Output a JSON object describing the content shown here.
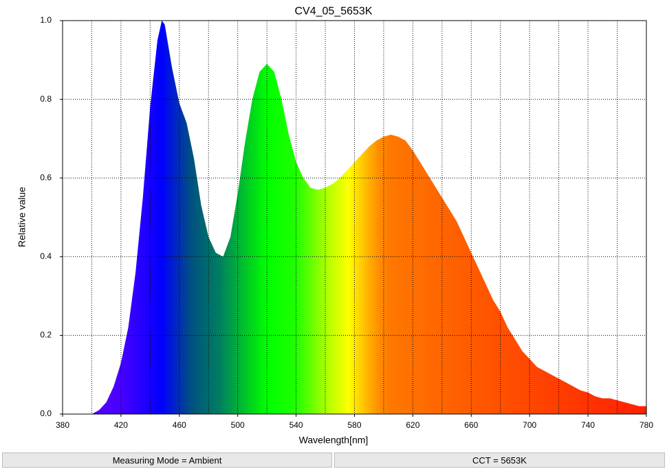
{
  "chart_data": {
    "type": "area",
    "title": "CV4_05_5653K",
    "x_label": "Wavelength[nm]",
    "y_label": "Relative value",
    "x": [
      400,
      405,
      410,
      415,
      420,
      425,
      430,
      435,
      440,
      445,
      448,
      450,
      455,
      460,
      465,
      470,
      475,
      480,
      485,
      490,
      495,
      500,
      505,
      510,
      515,
      520,
      525,
      530,
      535,
      540,
      545,
      550,
      555,
      560,
      565,
      570,
      575,
      580,
      585,
      590,
      595,
      600,
      605,
      610,
      615,
      620,
      625,
      630,
      635,
      640,
      645,
      650,
      655,
      660,
      665,
      670,
      675,
      680,
      685,
      690,
      695,
      700,
      705,
      710,
      715,
      720,
      725,
      730,
      735,
      740,
      745,
      750,
      755,
      760,
      765,
      770,
      775,
      780
    ],
    "values": [
      0.0,
      0.01,
      0.03,
      0.07,
      0.13,
      0.22,
      0.36,
      0.55,
      0.78,
      0.95,
      1.0,
      0.99,
      0.88,
      0.79,
      0.74,
      0.65,
      0.53,
      0.45,
      0.41,
      0.4,
      0.45,
      0.56,
      0.69,
      0.8,
      0.87,
      0.89,
      0.87,
      0.8,
      0.71,
      0.64,
      0.6,
      0.575,
      0.57,
      0.575,
      0.585,
      0.6,
      0.62,
      0.64,
      0.66,
      0.68,
      0.695,
      0.705,
      0.71,
      0.705,
      0.695,
      0.67,
      0.64,
      0.61,
      0.58,
      0.55,
      0.52,
      0.49,
      0.45,
      0.41,
      0.37,
      0.33,
      0.29,
      0.26,
      0.22,
      0.19,
      0.16,
      0.14,
      0.12,
      0.11,
      0.1,
      0.09,
      0.08,
      0.07,
      0.06,
      0.055,
      0.045,
      0.04,
      0.04,
      0.035,
      0.03,
      0.025,
      0.02,
      0.02
    ],
    "xlim": [
      380,
      780
    ],
    "xticks": [
      380,
      420,
      460,
      500,
      540,
      580,
      620,
      660,
      700,
      740,
      780
    ],
    "xminor_ticks": [
      400,
      440,
      480,
      520,
      560,
      600,
      640,
      680,
      720,
      760
    ],
    "ylim": [
      0,
      1
    ],
    "yticks": [
      {
        "value": 0,
        "label": "0.0"
      },
      0.2,
      0.4,
      0.6,
      0.8,
      {
        "value": 1,
        "label": "1.0"
      }
    ],
    "grid": true
  },
  "status_bar": {
    "left": "Measuring Mode = Ambient",
    "right": "CCT = 5653K"
  }
}
